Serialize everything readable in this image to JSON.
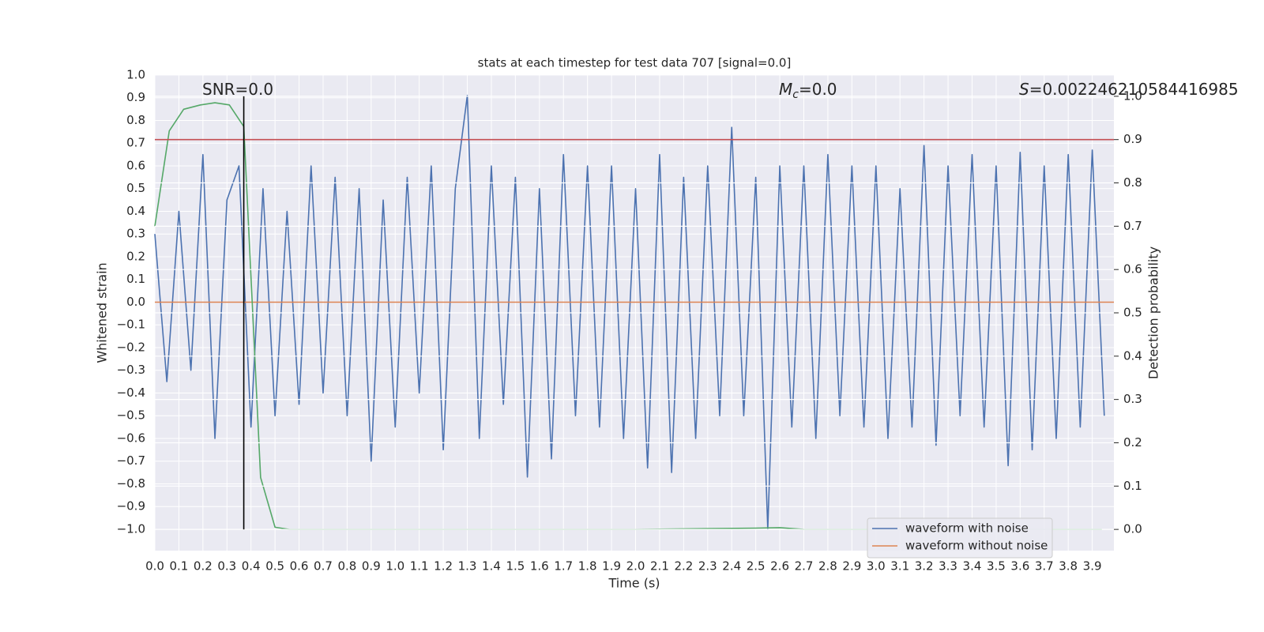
{
  "chart_data": {
    "type": "line",
    "title": "stats at each timestep for test data 707 [signal=0.0]",
    "xlabel": "Time (s)",
    "ylabel": "Whitened strain",
    "y2label": "Detection probability",
    "xlim": [
      0,
      3.99
    ],
    "ylim": [
      -1.094,
      1.0
    ],
    "y2lim": [
      -0.049,
      1.049
    ],
    "xticks": [
      {
        "value": 0,
        "label": "0.0"
      },
      0.1,
      0.2,
      0.3,
      0.4,
      0.5,
      0.6,
      0.7,
      0.8,
      0.9,
      {
        "value": 1,
        "label": "1.0"
      },
      1.1,
      1.2,
      1.3,
      1.4,
      1.5,
      1.6,
      1.7,
      1.8,
      1.9,
      {
        "value": 2,
        "label": "2.0"
      },
      2.1,
      2.2,
      2.3,
      2.4,
      2.5,
      2.6,
      2.7,
      2.8,
      2.9,
      {
        "value": 3,
        "label": "3.0"
      },
      3.1,
      3.2,
      3.3,
      3.4,
      3.5,
      3.6,
      3.7,
      3.8,
      3.9
    ],
    "yticks": [
      {
        "value": -1.0,
        "label": "−1.0"
      },
      {
        "value": -0.9,
        "label": "−0.9"
      },
      {
        "value": -0.8,
        "label": "−0.8"
      },
      {
        "value": -0.7,
        "label": "−0.7"
      },
      {
        "value": -0.6,
        "label": "−0.6"
      },
      {
        "value": -0.5,
        "label": "−0.5"
      },
      {
        "value": -0.4,
        "label": "−0.4"
      },
      {
        "value": -0.3,
        "label": "−0.3"
      },
      {
        "value": -0.2,
        "label": "−0.2"
      },
      {
        "value": -0.1,
        "label": "−0.1"
      },
      {
        "value": 0,
        "label": "0.0"
      },
      0.1,
      0.2,
      0.3,
      0.4,
      0.5,
      0.6,
      0.7,
      0.8,
      0.9,
      {
        "value": 1,
        "label": "1.0"
      }
    ],
    "y2ticks": [
      {
        "value": 0,
        "label": "0.0"
      },
      0.1,
      0.2,
      0.3,
      0.4,
      0.5,
      0.6,
      0.7,
      0.8,
      0.9,
      {
        "value": 1,
        "label": "1.0"
      }
    ],
    "grid": true,
    "legend": "lower right",
    "series": [
      {
        "name": "waveform with noise",
        "color": "#4c72b0",
        "x": [
          0,
          0.05,
          0.1,
          0.15,
          0.2,
          0.25,
          0.3,
          0.35,
          0.4,
          0.45,
          0.5,
          0.55,
          0.6,
          0.65,
          0.7,
          0.75,
          0.8,
          0.85,
          0.9,
          0.95,
          1.0,
          1.05,
          1.1,
          1.15,
          1.2,
          1.25,
          1.3,
          1.35,
          1.4,
          1.45,
          1.5,
          1.55,
          1.6,
          1.65,
          1.7,
          1.75,
          1.8,
          1.85,
          1.9,
          1.95,
          2.0,
          2.05,
          2.1,
          2.15,
          2.2,
          2.25,
          2.3,
          2.35,
          2.4,
          2.45,
          2.5,
          2.55,
          2.6,
          2.65,
          2.7,
          2.75,
          2.8,
          2.85,
          2.9,
          2.95,
          3.0,
          3.05,
          3.1,
          3.15,
          3.2,
          3.25,
          3.3,
          3.35,
          3.4,
          3.45,
          3.5,
          3.55,
          3.6,
          3.65,
          3.7,
          3.75,
          3.8,
          3.85,
          3.9,
          3.95
        ],
        "values": [
          0.3,
          -0.35,
          0.4,
          -0.3,
          0.65,
          -0.6,
          0.45,
          0.6,
          -0.55,
          0.5,
          -0.5,
          0.4,
          -0.45,
          0.6,
          -0.4,
          0.55,
          -0.5,
          0.5,
          -0.7,
          0.45,
          -0.55,
          0.55,
          -0.4,
          0.6,
          -0.65,
          0.5,
          0.91,
          -0.6,
          0.6,
          -0.45,
          0.55,
          -0.77,
          0.5,
          -0.69,
          0.65,
          -0.5,
          0.6,
          -0.55,
          0.6,
          -0.6,
          0.5,
          -0.73,
          0.65,
          -0.75,
          0.55,
          -0.6,
          0.6,
          -0.5,
          0.77,
          -0.5,
          0.55,
          -1.0,
          0.6,
          -0.55,
          0.6,
          -0.6,
          0.65,
          -0.5,
          0.6,
          -0.55,
          0.6,
          -0.6,
          0.5,
          -0.55,
          0.69,
          -0.63,
          0.6,
          -0.5,
          0.65,
          -0.55,
          0.6,
          -0.72,
          0.66,
          -0.65,
          0.6,
          -0.6,
          0.65,
          -0.55,
          0.67,
          -0.5
        ]
      },
      {
        "name": "waveform without noise",
        "color": "#dd8452",
        "x": [
          0,
          3.99
        ],
        "values": [
          0,
          0
        ]
      },
      {
        "color": "#55a868",
        "axis": "y2",
        "x": [
          0,
          0.06,
          0.12,
          0.19,
          0.25,
          0.31,
          0.37,
          0.44,
          0.5,
          0.56,
          0.62,
          1.0,
          2.0,
          2.5,
          2.6,
          2.7,
          3.0,
          3.94
        ],
        "values": [
          0.7,
          0.92,
          0.97,
          0.98,
          0.985,
          0.98,
          0.93,
          0.12,
          0.005,
          0.0,
          0.0,
          0.0,
          0.0,
          0.003,
          0.004,
          0.0,
          0.0,
          0.0
        ]
      }
    ],
    "hline": {
      "y": 0.9,
      "axis": "y2",
      "color": "#c44e52"
    },
    "vline": {
      "x": 0.37,
      "ymin": 0,
      "ymax": 1,
      "axis": "y2",
      "color": "#000000"
    },
    "annotations": [
      {
        "text": "SNR=0.0"
      },
      {
        "symbol": "M",
        "subscript": "c",
        "text": "=0.0"
      },
      {
        "symbol": "S",
        "text": "=0.002246210584416985"
      }
    ]
  }
}
